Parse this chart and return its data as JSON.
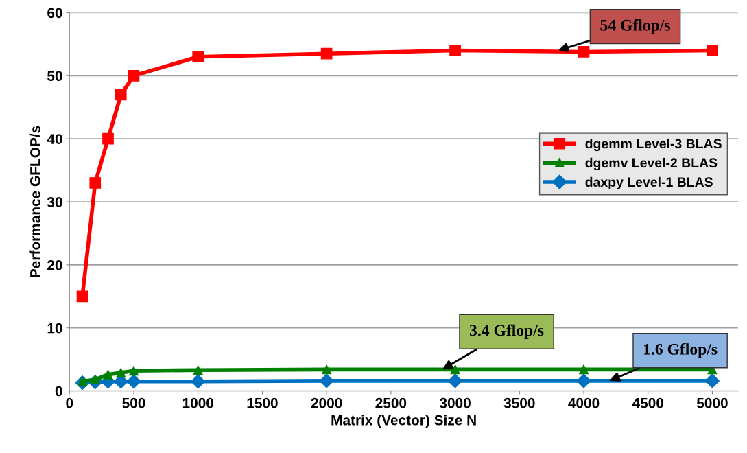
{
  "chart_data": {
    "type": "line",
    "xlabel": "Matrix (Vector) Size N",
    "ylabel": "Performance GFLOP/s",
    "x": [
      100,
      200,
      300,
      400,
      500,
      1000,
      2000,
      3000,
      4000,
      5000
    ],
    "series": [
      {
        "name": "dgemm Level-3 BLAS",
        "color": "#ff0000",
        "marker": "square",
        "values": [
          15,
          33,
          40,
          47,
          50,
          53,
          53.5,
          54,
          53.8,
          54
        ]
      },
      {
        "name": "dgemv Level-2 BLAS",
        "color": "#008000",
        "marker": "triangle",
        "values": [
          1.5,
          1.8,
          2.6,
          2.9,
          3.2,
          3.3,
          3.4,
          3.4,
          3.4,
          3.4
        ]
      },
      {
        "name": "daxpy Level-1 BLAS",
        "color": "#0070c0",
        "marker": "diamond",
        "values": [
          1.3,
          1.4,
          1.5,
          1.5,
          1.5,
          1.5,
          1.6,
          1.6,
          1.6,
          1.6
        ]
      }
    ],
    "annotations": [
      {
        "text": "54 Gflop/s",
        "x": 3800,
        "y": 54
      },
      {
        "text": "3.4 Gflop/s",
        "x": 2900,
        "y": 3.4
      },
      {
        "text": "1.6 Gflop/s",
        "x": 4200,
        "y": 1.6
      }
    ],
    "xlim": [
      0,
      5200
    ],
    "xticks": [
      0,
      500,
      1000,
      1500,
      2000,
      2500,
      3000,
      3500,
      4000,
      4500,
      5000
    ],
    "ylim": [
      0,
      60
    ],
    "yticks": [
      0,
      10,
      20,
      30,
      40,
      50,
      60
    ],
    "grid": "y",
    "legend": "center right",
    "line_style": "solid"
  }
}
